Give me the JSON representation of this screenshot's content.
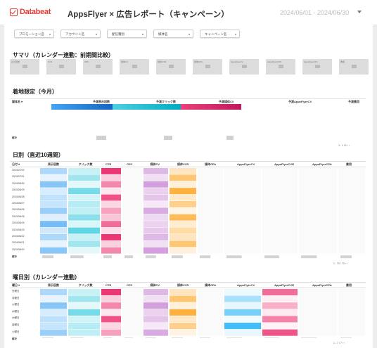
{
  "header": {
    "logo_text": "Databeat",
    "title": "AppsFlyer × 広告レポート（キャンペーン）",
    "date_range": "2024/06/01 - 2024/06/30"
  },
  "filters": [
    "プロモーション名",
    "アカウント名",
    "配信種別",
    "媒体名",
    "キャンペーン名"
  ],
  "summary": {
    "title": "サマリ（カレンダー連動：前期間比較）",
    "kpi_labels": [
      "表示回数",
      "CTR",
      "CPC",
      "媒体CV",
      "媒体CVR",
      "媒体CPA",
      "AppsFlyerCV",
      "AppsFlyerCVR",
      "AppsFlyerCPA",
      "費用"
    ]
  },
  "forecast": {
    "title": "着地想定（今月）",
    "columns": [
      "媒体名",
      "予測表示回数",
      "予測クリック数",
      "予測媒体CV",
      "予測AppsFlyerCV",
      "予測費用"
    ],
    "total_label": "総計",
    "pager": "1 - 1 / 1"
  },
  "daily": {
    "title": "日別（直近10週間）",
    "columns": [
      "日付",
      "表示回数",
      "クリック数",
      "CTR",
      "CPC",
      "媒体CV",
      "媒体CVR",
      "媒体CPA",
      "AppsFlyerCV",
      "AppsFlyerCVR",
      "AppsFlyerCPA",
      "費用"
    ],
    "rows": [
      "2024/07/02",
      "2024/07/01",
      "2024/06/30",
      "2024/06/29",
      "2024/06/28",
      "2024/06/27",
      "2024/06/26",
      "2024/06/25",
      "2024/06/24",
      "2024/06/23",
      "2024/06/22",
      "2024/06/21",
      "2024/06/20"
    ],
    "total_label": "総計",
    "pager": "1 - 72 / 72"
  },
  "weekday": {
    "title": "曜日別（カレンダー連動）",
    "columns": [
      "曜日",
      "表示回数",
      "クリック数",
      "CTR",
      "CPC",
      "媒体CV",
      "媒体CVR",
      "媒体CPA",
      "AppsFlyerCV",
      "AppsFlyerCVR",
      "AppsFlyerCPA",
      "費用"
    ],
    "rows": [
      "日曜日",
      "月曜日",
      "火曜日",
      "水曜日",
      "木曜日",
      "金曜日",
      "土曜日"
    ],
    "total_label": "総計",
    "pager": "1 - 7 / 7"
  },
  "colors": {
    "accent": "#e53935",
    "blue": "#1e88e5",
    "teal": "#26c6da",
    "pink": "#e91e63",
    "lavender": "#ce93d8",
    "orange": "#ffa726"
  },
  "icons": [
    "databeat-logo-icon",
    "dropdown-arrow-icon",
    "sort-desc-icon",
    "prev-page-icon",
    "next-page-icon"
  ]
}
